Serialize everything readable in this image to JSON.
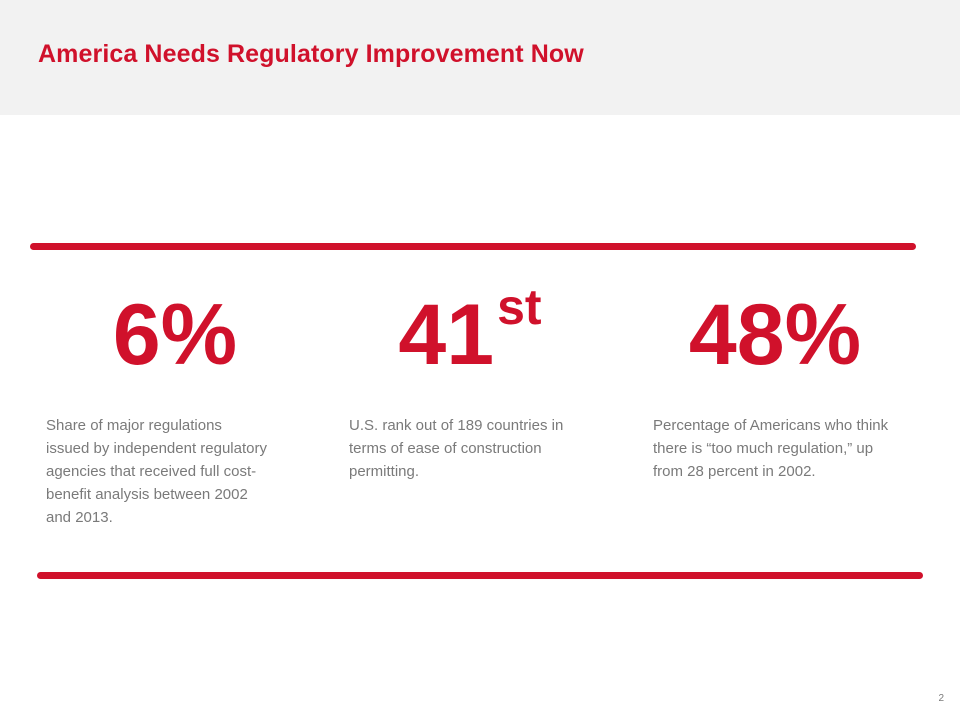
{
  "slide": {
    "title": "America Needs Regulatory Improvement Now",
    "page_number": "2"
  },
  "stats": [
    {
      "value": "6%",
      "suffix": "",
      "description": "Share of major regulations issued by independent regulatory agencies that received full cost-benefit analysis between 2002 and 2013."
    },
    {
      "value": "41",
      "suffix": "st",
      "description": "U.S. rank out of 189 countries in terms of ease of construction permitting."
    },
    {
      "value": "48%",
      "suffix": "",
      "description": "Percentage of Americans who think there is “too much regulation,” up from 28 percent in 2002."
    }
  ],
  "colors": {
    "accent": "#d0112b",
    "header_background": "#f2f2f2",
    "body_text": "#7a7a7a"
  }
}
